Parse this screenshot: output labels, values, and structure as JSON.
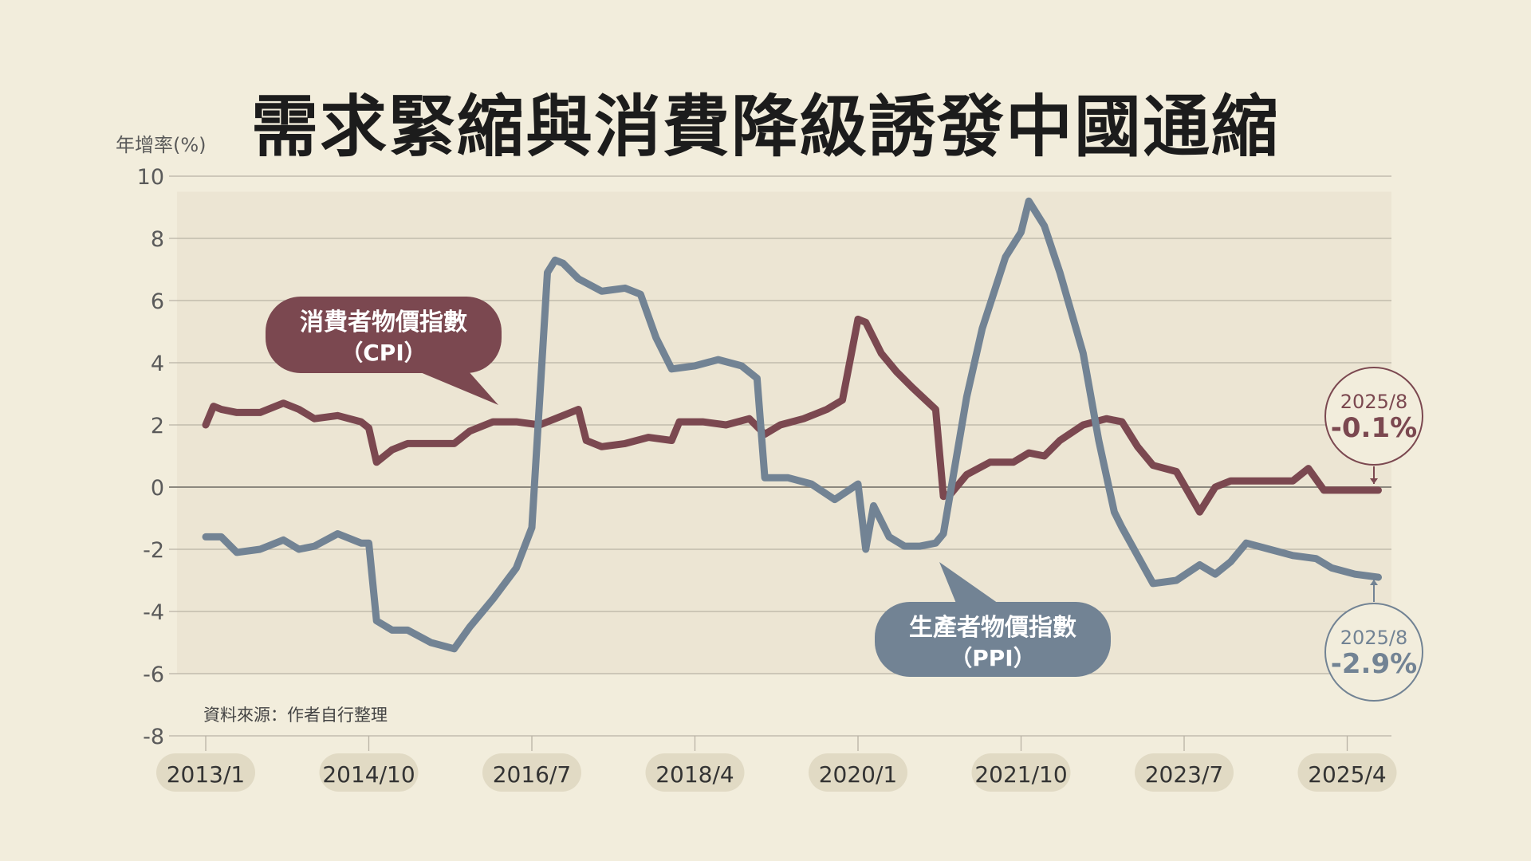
{
  "chart_data": {
    "type": "line",
    "title": "需求緊縮與消費降級誘發中國通縮",
    "ylabel": "年增率(%)",
    "source": "資料來源：作者自行整理",
    "ylim": [
      -8,
      10
    ],
    "y_ticks": [
      "10",
      "8",
      "6",
      "4",
      "2",
      "0",
      "-2",
      "-4",
      "-6",
      "-8"
    ],
    "x_categories": [
      "2013/1",
      "2014/10",
      "2016/7",
      "2018/4",
      "2020/1",
      "2021/10",
      "2023/7",
      "2025/4"
    ],
    "grid": true,
    "series": [
      {
        "name": "消費者物價指數（CPI）",
        "label_line1": "消費者物價指數",
        "label_line2": "（CPI）",
        "color": "#7b4850",
        "x": [
          "2013/1",
          "2013/2",
          "2013/3",
          "2013/5",
          "2013/8",
          "2013/11",
          "2014/1",
          "2014/3",
          "2014/6",
          "2014/9",
          "2014/10",
          "2014/11",
          "2015/1",
          "2015/3",
          "2015/6",
          "2015/9",
          "2015/11",
          "2016/2",
          "2016/5",
          "2016/8",
          "2016/11",
          "2017/1",
          "2017/2",
          "2017/4",
          "2017/7",
          "2017/10",
          "2018/1",
          "2018/2",
          "2018/5",
          "2018/8",
          "2018/11",
          "2019/1",
          "2019/3",
          "2019/6",
          "2019/9",
          "2019/11",
          "2020/1",
          "2020/2",
          "2020/4",
          "2020/6",
          "2020/8",
          "2020/11",
          "2020/12",
          "2021/1",
          "2021/3",
          "2021/6",
          "2021/9",
          "2021/11",
          "2022/1",
          "2022/3",
          "2022/6",
          "2022/9",
          "2022/11",
          "2023/1",
          "2023/3",
          "2023/6",
          "2023/9",
          "2023/11",
          "2024/1",
          "2024/3",
          "2024/6",
          "2024/9",
          "2024/11",
          "2025/1",
          "2025/2",
          "2025/3",
          "2025/5",
          "2025/8"
        ],
        "values": [
          2.0,
          2.6,
          2.5,
          2.4,
          2.4,
          2.7,
          2.5,
          2.2,
          2.3,
          2.1,
          1.9,
          0.8,
          1.2,
          1.4,
          1.4,
          1.4,
          1.8,
          2.1,
          2.1,
          2.0,
          2.3,
          2.5,
          1.5,
          1.3,
          1.4,
          1.6,
          1.5,
          2.1,
          2.1,
          2.0,
          2.2,
          1.7,
          2.0,
          2.2,
          2.5,
          2.8,
          5.4,
          5.3,
          4.3,
          3.7,
          3.2,
          2.5,
          -0.3,
          -0.2,
          0.4,
          0.8,
          0.8,
          1.1,
          1.0,
          1.5,
          2.0,
          2.2,
          2.1,
          1.3,
          0.7,
          0.5,
          -0.8,
          0.0,
          0.2,
          0.2,
          0.2,
          0.2,
          0.6,
          -0.1,
          -0.1,
          -0.1,
          -0.1,
          -0.1
        ]
      },
      {
        "name": "生產者物價指數（PPI）",
        "label_line1": "生產者物價指數",
        "label_line2": "（PPI）",
        "color": "#728394",
        "x": [
          "2013/1",
          "2013/3",
          "2013/5",
          "2013/8",
          "2013/11",
          "2014/1",
          "2014/3",
          "2014/6",
          "2014/9",
          "2014/10",
          "2014/11",
          "2015/1",
          "2015/3",
          "2015/6",
          "2015/9",
          "2015/11",
          "2016/2",
          "2016/5",
          "2016/7",
          "2016/9",
          "2016/10",
          "2016/11",
          "2017/1",
          "2017/4",
          "2017/7",
          "2017/9",
          "2017/11",
          "2018/1",
          "2018/4",
          "2018/7",
          "2018/10",
          "2018/12",
          "2019/1",
          "2019/4",
          "2019/7",
          "2019/10",
          "2020/1",
          "2020/2",
          "2020/3",
          "2020/5",
          "2020/7",
          "2020/9",
          "2020/11",
          "2020/12",
          "2021/3",
          "2021/5",
          "2021/8",
          "2021/10",
          "2021/11",
          "2022/1",
          "2022/3",
          "2022/6",
          "2022/8",
          "2022/10",
          "2022/11",
          "2023/3",
          "2023/6",
          "2023/9",
          "2023/11",
          "2024/1",
          "2024/3",
          "2024/6",
          "2024/9",
          "2024/12",
          "2025/2",
          "2025/5",
          "2025/8"
        ],
        "values": [
          -1.6,
          -1.6,
          -2.1,
          -2.0,
          -1.7,
          -2.0,
          -1.9,
          -1.5,
          -1.8,
          -1.8,
          -4.3,
          -4.6,
          -4.6,
          -5.0,
          -5.2,
          -4.5,
          -3.6,
          -2.6,
          -1.3,
          6.9,
          7.3,
          7.2,
          6.7,
          6.3,
          6.4,
          6.2,
          4.8,
          3.8,
          3.9,
          4.1,
          3.9,
          3.5,
          0.3,
          0.3,
          0.1,
          -0.4,
          0.1,
          -2.0,
          -0.6,
          -1.6,
          -1.9,
          -1.9,
          -1.8,
          -1.5,
          2.9,
          5.1,
          7.4,
          8.2,
          9.2,
          8.4,
          6.9,
          4.3,
          1.5,
          -0.8,
          -1.3,
          -3.1,
          -3.0,
          -2.5,
          -2.8,
          -2.4,
          -1.8,
          -2.0,
          -2.2,
          -2.3,
          -2.6,
          -2.8,
          -2.9
        ]
      }
    ],
    "annotations": [
      {
        "date_label": "2025/8",
        "value_label": "-0.1%",
        "series": "CPI",
        "color": "#7b4850"
      },
      {
        "date_label": "2025/8",
        "value_label": "-2.9%",
        "series": "PPI",
        "color": "#728394"
      }
    ]
  },
  "colors": {
    "background": "#f2eddc",
    "plot_band": "#ece5d3",
    "grid": "#b9b3a5",
    "axis_text": "#5a5a5a",
    "pill": "#e1dac4"
  }
}
